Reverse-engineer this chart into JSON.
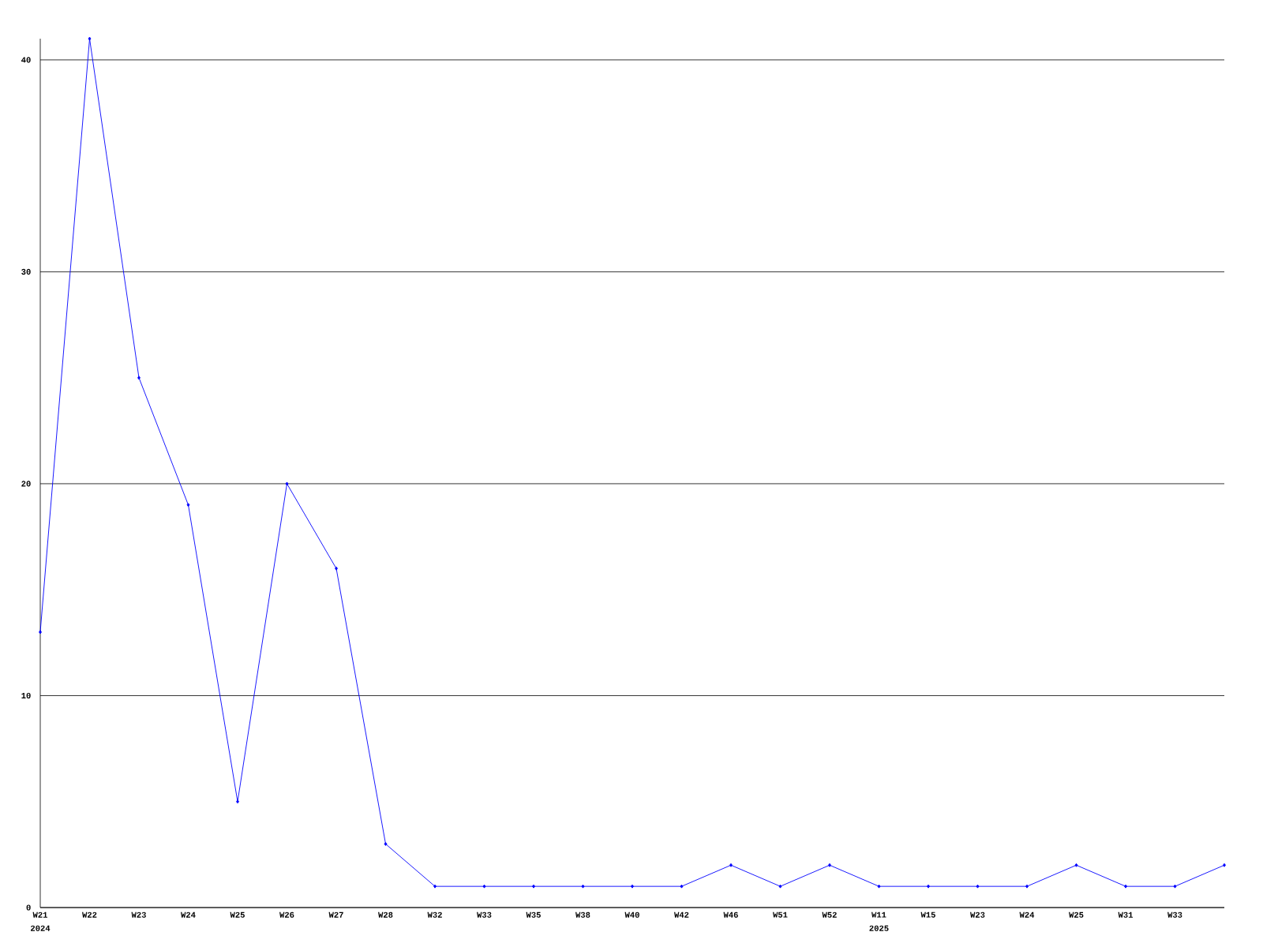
{
  "chart_data": {
    "type": "line",
    "categories": [
      "W21",
      "W22",
      "W23",
      "W24",
      "W25",
      "W26",
      "W27",
      "W28",
      "W32",
      "W33",
      "W35",
      "W38",
      "W40",
      "W42",
      "W46",
      "W51",
      "W52",
      "W11",
      "W15",
      "W23",
      "W24",
      "W25",
      "W31",
      "W33",
      null
    ],
    "values": [
      13,
      41,
      25,
      19,
      5,
      20,
      16,
      3,
      1,
      1,
      1,
      1,
      1,
      1,
      2,
      1,
      2,
      1,
      1,
      1,
      1,
      2,
      1,
      1,
      2
    ],
    "color": "#0000ff",
    "ylim": [
      0,
      41
    ],
    "yticks": [
      0,
      10,
      20,
      30,
      40
    ],
    "grid": "y",
    "marker": "diamond",
    "line_style": "solid",
    "annotations": [
      "2024",
      "2025"
    ]
  }
}
